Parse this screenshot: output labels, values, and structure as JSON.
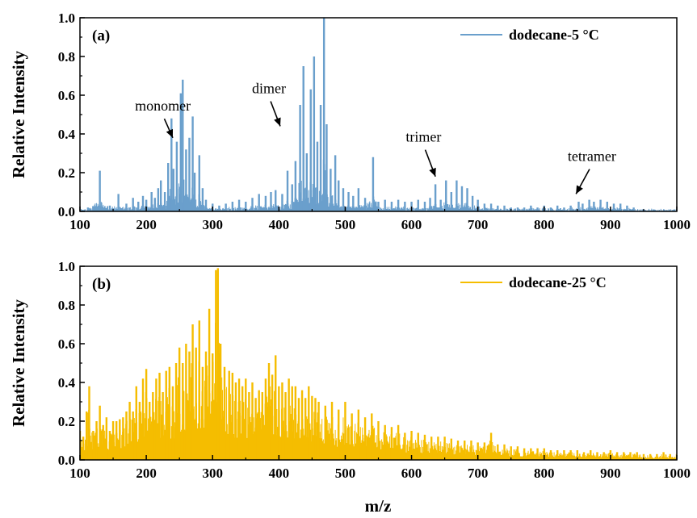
{
  "chart_data": [
    {
      "type": "line",
      "panel_label": "(a)",
      "ylabel": "Relative Intensity",
      "xlim": [
        100,
        1000
      ],
      "ylim": [
        0,
        1.0
      ],
      "x_ticks": [
        "100",
        "200",
        "300",
        "400",
        "500",
        "600",
        "700",
        "800",
        "900",
        "1000"
      ],
      "y_ticks": [
        "0.0",
        "0.2",
        "0.4",
        "0.6",
        "0.8",
        "1.0"
      ],
      "legend": "top-right",
      "color": "#6a9fcc",
      "series": [
        {
          "name": "dodecane-5 °C",
          "x": [
            112,
            130,
            145,
            158,
            170,
            180,
            188,
            195,
            200,
            208,
            213,
            218,
            222,
            228,
            233,
            238,
            241,
            246,
            252,
            255,
            260,
            265,
            270,
            273,
            280,
            285,
            290,
            300,
            310,
            320,
            330,
            340,
            350,
            360,
            370,
            380,
            388,
            395,
            405,
            413,
            420,
            425,
            432,
            437,
            442,
            448,
            453,
            458,
            463,
            468,
            472,
            478,
            485,
            490,
            497,
            505,
            512,
            520,
            530,
            542,
            550,
            560,
            570,
            580,
            590,
            600,
            610,
            620,
            628,
            636,
            644,
            652,
            660,
            668,
            676,
            684,
            692,
            700,
            710,
            720,
            730,
            740,
            750,
            760,
            770,
            780,
            790,
            800,
            810,
            820,
            830,
            840,
            852,
            858,
            868,
            875,
            885,
            895,
            905,
            915,
            925,
            935,
            950,
            965,
            980,
            995
          ],
          "y": [
            0.02,
            0.21,
            0.03,
            0.09,
            0.04,
            0.07,
            0.05,
            0.08,
            0.06,
            0.1,
            0.07,
            0.12,
            0.16,
            0.1,
            0.25,
            0.48,
            0.22,
            0.36,
            0.61,
            0.68,
            0.32,
            0.38,
            0.49,
            0.2,
            0.29,
            0.12,
            0.06,
            0.04,
            0.03,
            0.04,
            0.05,
            0.06,
            0.05,
            0.07,
            0.09,
            0.08,
            0.1,
            0.11,
            0.09,
            0.21,
            0.14,
            0.26,
            0.55,
            0.75,
            0.3,
            0.63,
            0.8,
            0.36,
            0.55,
            1.0,
            0.45,
            0.22,
            0.29,
            0.16,
            0.12,
            0.1,
            0.08,
            0.12,
            0.07,
            0.28,
            0.05,
            0.06,
            0.05,
            0.06,
            0.05,
            0.05,
            0.06,
            0.05,
            0.07,
            0.14,
            0.06,
            0.16,
            0.1,
            0.16,
            0.13,
            0.12,
            0.08,
            0.06,
            0.04,
            0.04,
            0.03,
            0.03,
            0.02,
            0.02,
            0.02,
            0.03,
            0.02,
            0.03,
            0.02,
            0.03,
            0.02,
            0.03,
            0.05,
            0.04,
            0.06,
            0.05,
            0.06,
            0.05,
            0.04,
            0.04,
            0.03,
            0.02,
            0.01,
            0.01,
            0.005,
            0.003
          ]
        }
      ],
      "annotations": [
        {
          "text": "monomer",
          "x": 225,
          "y": 0.52,
          "arrow_to_x": 240,
          "arrow_to_y": 0.38
        },
        {
          "text": "dimer",
          "x": 385,
          "y": 0.61,
          "arrow_to_x": 402,
          "arrow_to_y": 0.44
        },
        {
          "text": "trimer",
          "x": 618,
          "y": 0.36,
          "arrow_to_x": 636,
          "arrow_to_y": 0.18
        },
        {
          "text": "tetramer",
          "x": 872,
          "y": 0.26,
          "arrow_to_x": 848,
          "arrow_to_y": 0.09
        }
      ]
    },
    {
      "type": "line",
      "panel_label": "(b)",
      "ylabel": "Relative Intensity",
      "xlabel": "m/z",
      "xlim": [
        100,
        1000
      ],
      "ylim": [
        0,
        1.0
      ],
      "x_ticks": [
        "100",
        "200",
        "300",
        "400",
        "500",
        "600",
        "700",
        "800",
        "900",
        "1000"
      ],
      "y_ticks": [
        "0.0",
        "0.2",
        "0.4",
        "0.6",
        "0.8",
        "1.0"
      ],
      "legend": "top-right",
      "color": "#f5bd00",
      "series": [
        {
          "name": "dodecane-25 °C",
          "x": [
            100,
            105,
            110,
            114,
            120,
            125,
            130,
            135,
            140,
            145,
            150,
            155,
            160,
            165,
            170,
            175,
            180,
            185,
            190,
            195,
            200,
            205,
            210,
            215,
            220,
            225,
            230,
            235,
            240,
            245,
            250,
            255,
            260,
            265,
            270,
            275,
            280,
            285,
            290,
            295,
            300,
            305,
            308,
            312,
            318,
            325,
            330,
            335,
            340,
            345,
            350,
            355,
            360,
            365,
            370,
            375,
            380,
            385,
            390,
            395,
            400,
            405,
            410,
            415,
            420,
            425,
            430,
            435,
            440,
            445,
            450,
            455,
            460,
            470,
            480,
            490,
            500,
            510,
            520,
            530,
            540,
            550,
            560,
            570,
            580,
            590,
            600,
            610,
            620,
            630,
            640,
            650,
            660,
            670,
            680,
            690,
            700,
            710,
            720,
            730,
            740,
            750,
            760,
            770,
            780,
            790,
            800,
            810,
            820,
            830,
            840,
            850,
            860,
            870,
            880,
            890,
            900,
            910,
            920,
            930,
            940,
            950,
            960,
            970,
            980,
            990,
            1000
          ],
          "y": [
            0.15,
            0.12,
            0.25,
            0.38,
            0.15,
            0.2,
            0.28,
            0.18,
            0.22,
            0.15,
            0.2,
            0.2,
            0.21,
            0.22,
            0.25,
            0.3,
            0.25,
            0.38,
            0.3,
            0.42,
            0.47,
            0.3,
            0.35,
            0.42,
            0.45,
            0.35,
            0.46,
            0.48,
            0.38,
            0.5,
            0.58,
            0.5,
            0.6,
            0.56,
            0.7,
            0.58,
            0.72,
            0.48,
            0.56,
            0.78,
            0.55,
            0.98,
            0.99,
            0.6,
            0.48,
            0.46,
            0.45,
            0.4,
            0.42,
            0.38,
            0.42,
            0.35,
            0.4,
            0.32,
            0.36,
            0.35,
            0.42,
            0.5,
            0.44,
            0.54,
            0.38,
            0.4,
            0.35,
            0.42,
            0.38,
            0.38,
            0.32,
            0.36,
            0.32,
            0.38,
            0.33,
            0.32,
            0.3,
            0.28,
            0.3,
            0.26,
            0.3,
            0.24,
            0.26,
            0.22,
            0.24,
            0.2,
            0.18,
            0.17,
            0.18,
            0.14,
            0.15,
            0.14,
            0.13,
            0.12,
            0.12,
            0.12,
            0.11,
            0.1,
            0.1,
            0.1,
            0.09,
            0.09,
            0.14,
            0.08,
            0.08,
            0.07,
            0.07,
            0.06,
            0.06,
            0.06,
            0.06,
            0.05,
            0.05,
            0.05,
            0.05,
            0.05,
            0.04,
            0.05,
            0.04,
            0.04,
            0.05,
            0.04,
            0.04,
            0.04,
            0.04,
            0.03,
            0.03,
            0.03,
            0.04,
            0.03,
            0.03
          ]
        }
      ],
      "annotations": []
    }
  ]
}
